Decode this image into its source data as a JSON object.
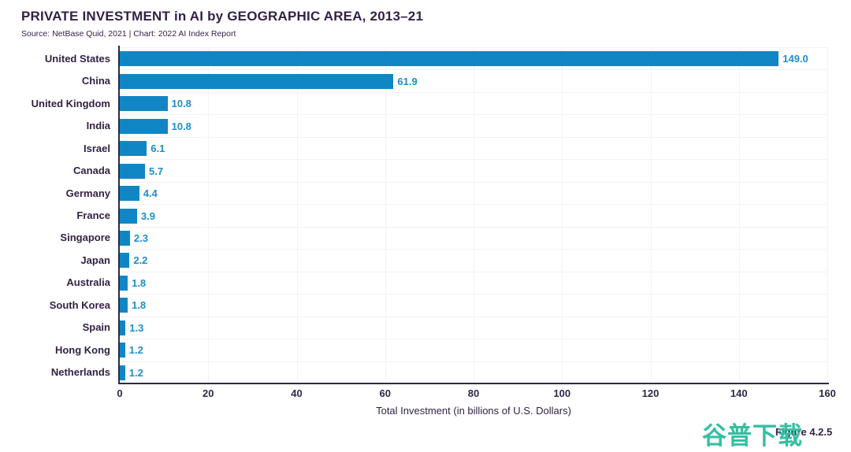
{
  "header": {
    "title": "PRIVATE INVESTMENT in AI by GEOGRAPHIC AREA, 2013–21",
    "source": "Source: NetBase Quid, 2021 | Chart: 2022 AI Index Report"
  },
  "figure_label": "Figure 4.2.5",
  "watermark_text": "谷普下载",
  "colors": {
    "bar": "#1186c4",
    "value_label": "#1d8ec9",
    "text_dark": "#332144",
    "axis": "#2e2a44",
    "gridline": "#f4f1f5",
    "watermark": "#35bfa2",
    "background": "#ffffff"
  },
  "chart_data": {
    "type": "bar",
    "orientation": "horizontal",
    "title": "PRIVATE INVESTMENT in AI by GEOGRAPHIC AREA, 2013–21",
    "subtitle": "Source: NetBase Quid, 2021 | Chart: 2022 AI Index Report",
    "categories": [
      "United States",
      "China",
      "United Kingdom",
      "India",
      "Israel",
      "Canada",
      "Germany",
      "France",
      "Singapore",
      "Japan",
      "Australia",
      "South Korea",
      "Spain",
      "Hong Kong",
      "Netherlands"
    ],
    "values": [
      149.0,
      61.9,
      10.8,
      10.8,
      6.1,
      5.7,
      4.4,
      3.9,
      2.3,
      2.2,
      1.8,
      1.8,
      1.3,
      1.2,
      1.2
    ],
    "value_labels": [
      "149.0",
      "61.9",
      "10.8",
      "10.8",
      "6.1",
      "5.7",
      "4.4",
      "3.9",
      "2.3",
      "2.2",
      "1.8",
      "1.8",
      "1.3",
      "1.2",
      "1.2"
    ],
    "xlabel": "Total Investment (in billions of U.S. Dollars)",
    "ylabel": "",
    "xlim": [
      0,
      160
    ],
    "xticks": [
      0,
      20,
      40,
      60,
      80,
      100,
      120,
      140,
      160
    ],
    "grid": true,
    "legend": false
  }
}
